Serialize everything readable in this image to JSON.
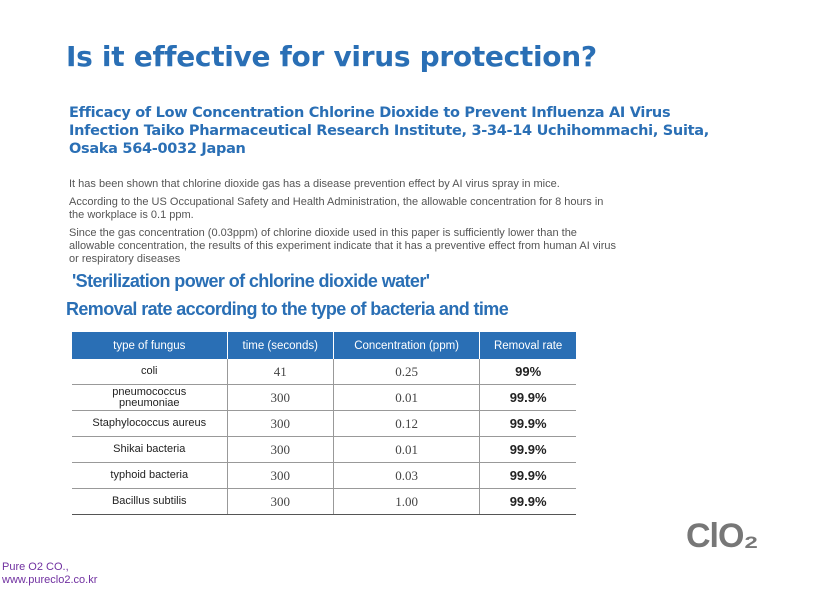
{
  "header": {
    "title": "Is it effective for virus protection?",
    "subtitle": [
      "Efficacy of Low Concentration Chlorine Dioxide to Prevent Influenza AI Virus",
      "Infection Taiko Pharmaceutical Research Institute, 3-34-14 Uchihommachi, Suita,",
      "Osaka 564-0032 Japan"
    ]
  },
  "paragraphs": [
    [
      "It has been shown that chlorine dioxide gas has a disease prevention effect by AI virus spray in mice."
    ],
    [
      "According to the US Occupational Safety and Health Administration, the allowable concentration for 8 hours in",
      "the workplace is 0.1 ppm."
    ],
    [
      "Since the gas concentration (0.03ppm) of chlorine dioxide used in this paper is sufficiently lower than the",
      "allowable concentration, the results of this experiment indicate that it has a preventive effect from human AI virus",
      "or respiratory diseases"
    ]
  ],
  "section": {
    "heading": "'Sterilization power of chlorine dioxide water'",
    "subheading": "Removal rate according to the type of bacteria and time"
  },
  "table": {
    "columns": [
      "type of fungus",
      "time (seconds)",
      "Concentration (ppm)",
      "Removal rate"
    ],
    "rows": [
      [
        "coli",
        "41",
        "0.25",
        "99%"
      ],
      [
        "pneumococcus\npneumoniae",
        "300",
        "0.01",
        "99.9%"
      ],
      [
        "Staphylococcus aureus",
        "300",
        "0.12",
        "99.9%"
      ],
      [
        "Shikai bacteria",
        "300",
        "0.01",
        "99.9%"
      ],
      [
        "typhoid bacteria",
        "300",
        "0.03",
        "99.9%"
      ],
      [
        "Bacillus subtilis",
        "300",
        "1.00",
        "99.9%"
      ]
    ]
  },
  "logo": "ClO₂",
  "footer": [
    "Pure O2 CO.,",
    "www.pureclo2.co.kr"
  ]
}
